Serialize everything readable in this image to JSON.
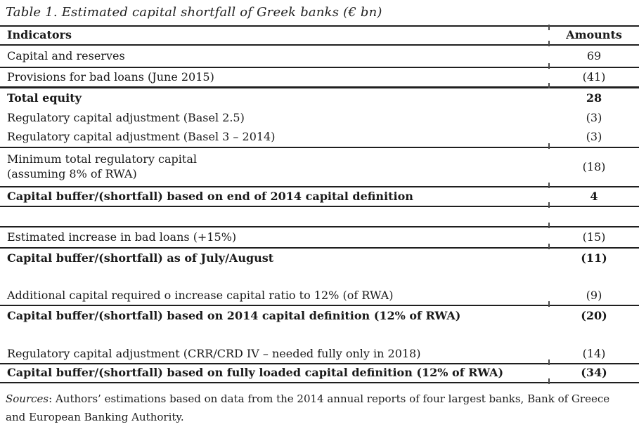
{
  "title": "Table 1. Estimated capital shortfall of Greek banks (€ bn)",
  "table": {
    "columns": [
      "Indicators",
      "Amounts"
    ],
    "rows": [
      {
        "label": "Capital and reserves",
        "amount": "69"
      },
      {
        "label": "Provisions for bad loans (June 2015)",
        "amount": "(41)"
      },
      {
        "label": "Total equity",
        "amount": "28"
      },
      {
        "label": "Regulatory capital adjustment (Basel 2.5)",
        "amount": "(3)"
      },
      {
        "label": "Regulatory capital adjustment (Basel 3 – 2014)",
        "amount": "(3)"
      },
      {
        "label": "Minimum total regulatory capital\n(assuming 8% of RWA)",
        "amount": "(18)"
      },
      {
        "label": "Capital buffer/(shortfall) based on end of 2014 capital definition",
        "amount": "4"
      },
      {
        "label": "Estimated increase in bad loans (+15%)",
        "amount": "(15)"
      },
      {
        "label": "Capital buffer/(shortfall) as of July/August",
        "amount": "(11)"
      },
      {
        "label": "Additional capital required o increase capital ratio to 12% (of RWA)",
        "amount": "(9)"
      },
      {
        "label": "Capital buffer/(shortfall) based on 2014 capital definition (12% of RWA)",
        "amount": "(20)"
      },
      {
        "label": "Regulatory capital adjustment (CRR/CRD IV – needed fully only in 2018)",
        "amount": "(14)"
      },
      {
        "label": "Capital buffer/(shortfall) based on fully loaded capital definition (12% of RWA)",
        "amount": "(34)"
      }
    ]
  },
  "footer": {
    "sources_label": "Sources",
    "sources_rest": ": Authors’ estimations based on data from the 2014 annual reports of four largest banks, Bank of Greece and European Banking Authority."
  }
}
